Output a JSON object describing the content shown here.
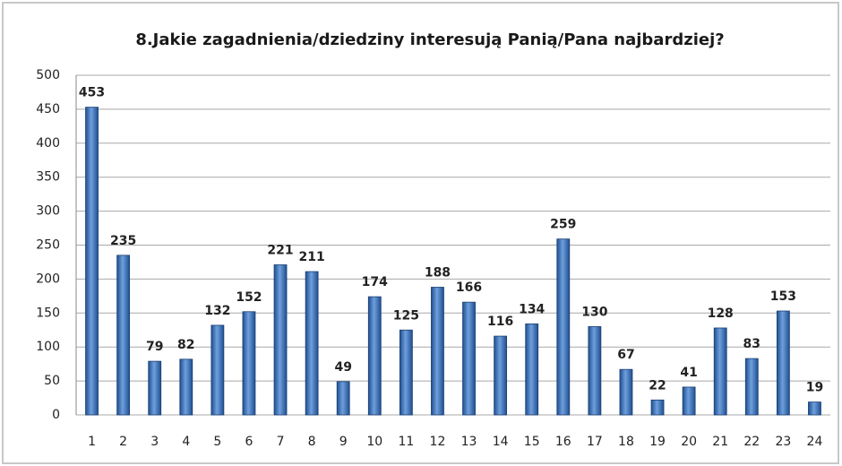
{
  "chart_data": {
    "type": "bar",
    "title": "8.Jakie zagadnienia/dziedziny interesują Panią/Pana najbardziej?",
    "categories": [
      "1",
      "2",
      "3",
      "4",
      "5",
      "6",
      "7",
      "8",
      "9",
      "10",
      "11",
      "12",
      "13",
      "14",
      "15",
      "16",
      "17",
      "18",
      "19",
      "20",
      "21",
      "22",
      "23",
      "24"
    ],
    "values": [
      453,
      235,
      79,
      82,
      132,
      152,
      221,
      211,
      49,
      174,
      125,
      188,
      166,
      116,
      134,
      259,
      130,
      67,
      22,
      41,
      128,
      83,
      153,
      19
    ],
    "color": "#3a6fb5",
    "ylim": [
      0,
      500
    ],
    "yticks": [
      0,
      50,
      100,
      150,
      200,
      250,
      300,
      350,
      400,
      450,
      500
    ],
    "grid": true
  }
}
